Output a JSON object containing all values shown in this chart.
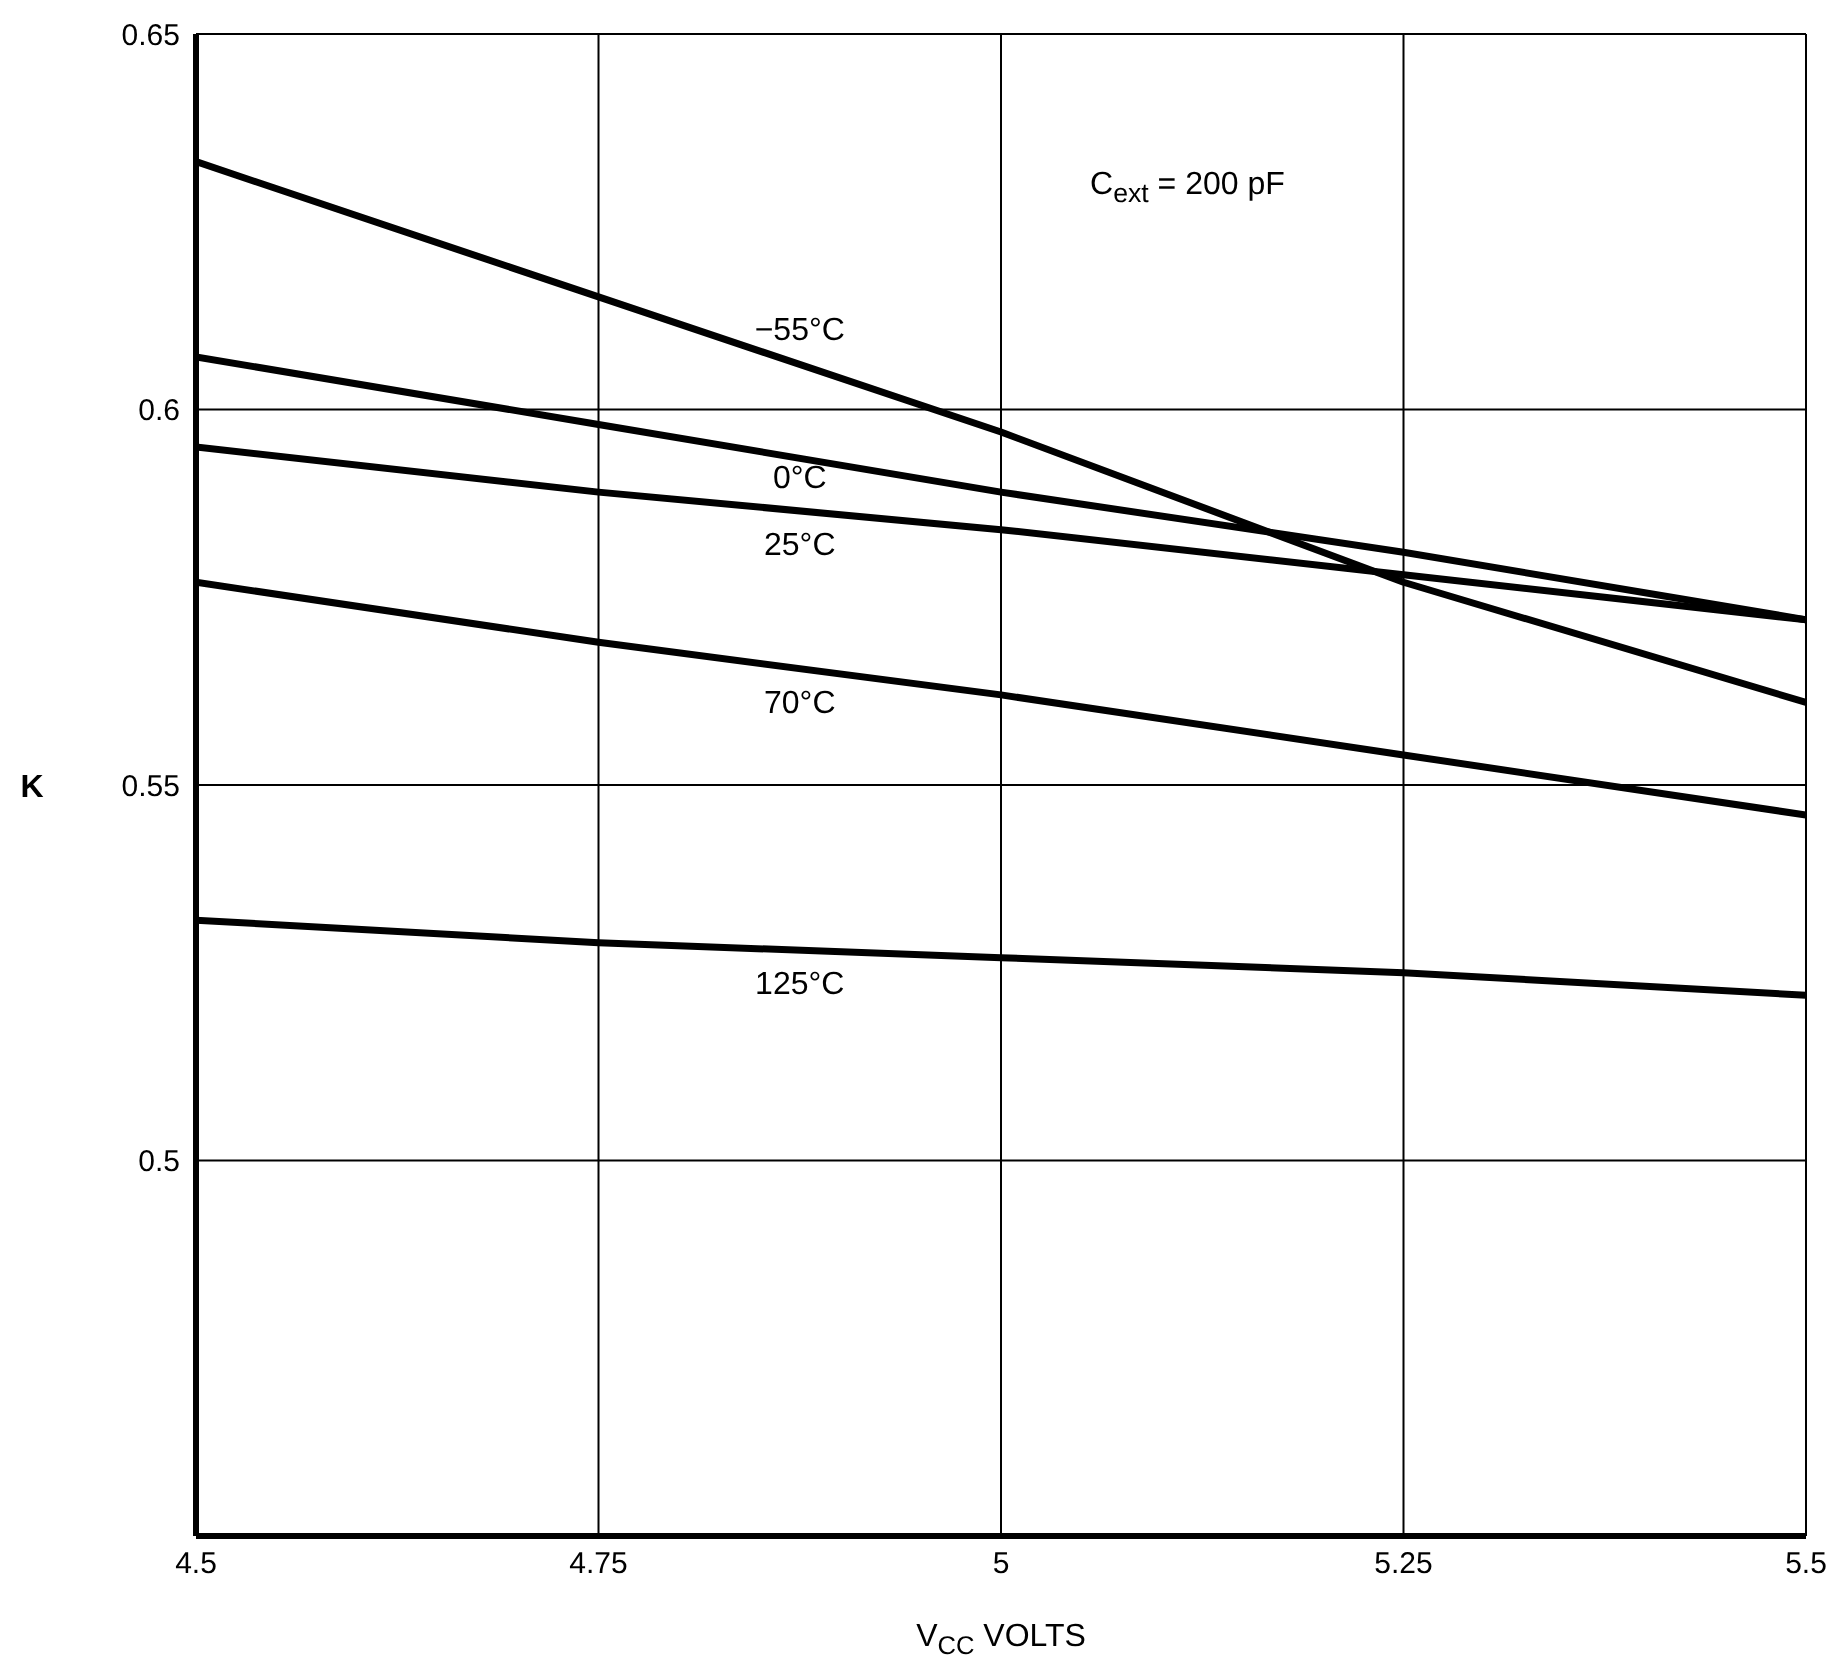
{
  "chart_data": {
    "type": "line",
    "xlabel": "V$_{CC}$ VOLTS",
    "ylabel": "K",
    "x": [
      4.5,
      4.75,
      5,
      5.25,
      5.5
    ],
    "series": [
      {
        "name": "−55°C",
        "color": "#000000",
        "values": [
          0.633,
          0.615,
          0.597,
          0.577,
          0.561
        ]
      },
      {
        "name": "0°C",
        "color": "#000000",
        "values": [
          0.607,
          0.598,
          0.589,
          0.581,
          0.572
        ]
      },
      {
        "name": "25°C",
        "color": "#000000",
        "values": [
          0.595,
          0.589,
          0.584,
          0.578,
          0.572
        ]
      },
      {
        "name": "70°C",
        "color": "#000000",
        "values": [
          0.577,
          0.569,
          0.562,
          0.554,
          0.546
        ]
      },
      {
        "name": "125°C",
        "color": "#000000",
        "values": [
          0.532,
          0.529,
          0.527,
          0.525,
          0.522
        ]
      }
    ],
    "xlim": [
      4.5,
      5.5
    ],
    "xticks": [
      4.5,
      4.75,
      5,
      5.25,
      5.5
    ],
    "ylim": [
      0.45,
      0.65
    ],
    "yticks": [
      0.5,
      0.55,
      0.6,
      0.65
    ],
    "grid": true,
    "marker": "none",
    "line_style": "solid",
    "legend": false,
    "annotations": [
      "C$_{ext}$ = 200 pF"
    ]
  }
}
